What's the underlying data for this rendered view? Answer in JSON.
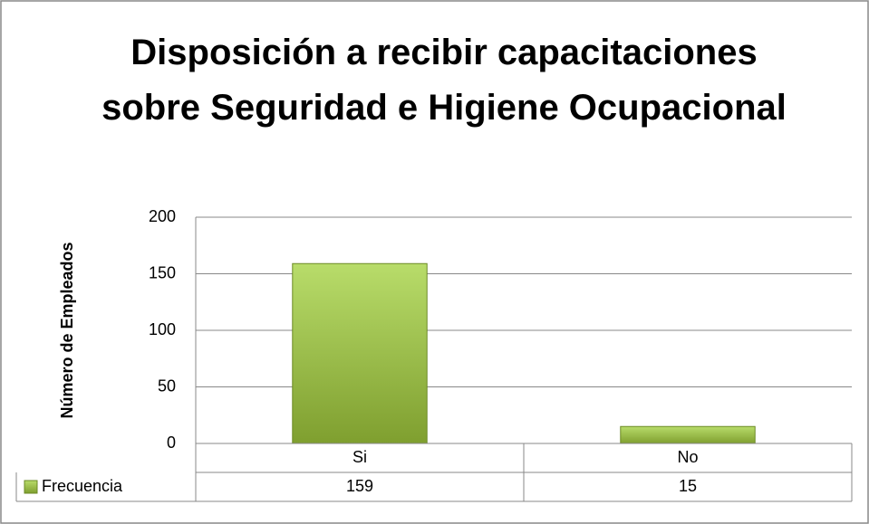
{
  "chart_data": {
    "type": "bar",
    "title": "Disposición a recibir capacitaciones sobre Seguridad e Higiene Ocupacional",
    "y_label": "Número de Empleados",
    "categories": [
      "Si",
      "No"
    ],
    "series": [
      {
        "name": "Frecuencia",
        "color": "#9bc53d",
        "values": [
          159,
          15
        ]
      }
    ],
    "ylim": [
      0,
      200
    ],
    "yticks": [
      0,
      50,
      100,
      150,
      200
    ],
    "grid": true,
    "data_table": true
  }
}
